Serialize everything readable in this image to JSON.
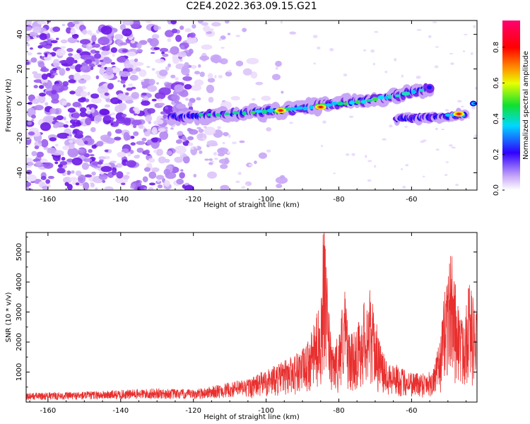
{
  "title": "C2E4.2022.363.09.15.G21",
  "chart_data": [
    {
      "type": "heatmap",
      "title": "C2E4.2022.363.09.15.G21",
      "xlabel": "Height of straight line (km)",
      "ylabel": "Frequency (Hz)",
      "xlim": [
        -166,
        -42
      ],
      "ylim": [
        -50,
        48
      ],
      "xticks": [
        -160,
        -140,
        -120,
        -100,
        -80,
        -60
      ],
      "yticks": [
        -40,
        -20,
        0,
        20,
        40
      ],
      "colorbar": {
        "label": "Normalized spectral amplitude",
        "range": [
          0.0,
          0.95
        ],
        "ticks": [
          0.0,
          0.2,
          0.4,
          0.6,
          0.8
        ]
      },
      "track": {
        "description_points": [
          [
            -127,
            -8
          ],
          [
            -110,
            -6
          ],
          [
            -95,
            -4
          ],
          [
            -85,
            -1
          ],
          [
            -75,
            1
          ],
          [
            -66,
            4
          ],
          [
            -58,
            7
          ],
          [
            -55,
            9
          ]
        ],
        "secondary_points": [
          [
            -65,
            -9
          ],
          [
            -55,
            -8
          ],
          [
            -45,
            -6
          ]
        ],
        "peak_points": [
          [
            -96,
            -4
          ],
          [
            -85,
            -2
          ],
          [
            -47,
            -6
          ]
        ]
      }
    },
    {
      "type": "line",
      "xlabel": "Height of straight line (km)",
      "ylabel": "SNR (10 * v/v)",
      "xlim": [
        -166,
        -42
      ],
      "ylim": [
        0,
        5650
      ],
      "xticks": [
        -160,
        -140,
        -120,
        -100,
        -80,
        -60
      ],
      "yticks": [
        1000,
        2000,
        3000,
        4000,
        5000
      ],
      "color": "#e8302f",
      "envelope": {
        "x": [
          -166,
          -150,
          -130,
          -120,
          -110,
          -104,
          -100,
          -96,
          -92,
          -89,
          -87,
          -85,
          -84.2,
          -83.5,
          -82,
          -80,
          -78.5,
          -77,
          -75,
          -73,
          -71.5,
          -70,
          -68,
          -65,
          -62,
          -58,
          -54,
          -52,
          -50.5,
          -49,
          -47.5,
          -46,
          -44.5,
          -43,
          -42
        ],
        "y": [
          280,
          320,
          420,
          380,
          600,
          750,
          1000,
          1200,
          1500,
          1700,
          2300,
          3100,
          5600,
          4300,
          1600,
          2100,
          3600,
          2000,
          2300,
          3100,
          3450,
          2600,
          1500,
          1200,
          1000,
          900,
          1000,
          2000,
          4000,
          4600,
          3300,
          2500,
          3800,
          3200,
          2700
        ]
      }
    }
  ]
}
